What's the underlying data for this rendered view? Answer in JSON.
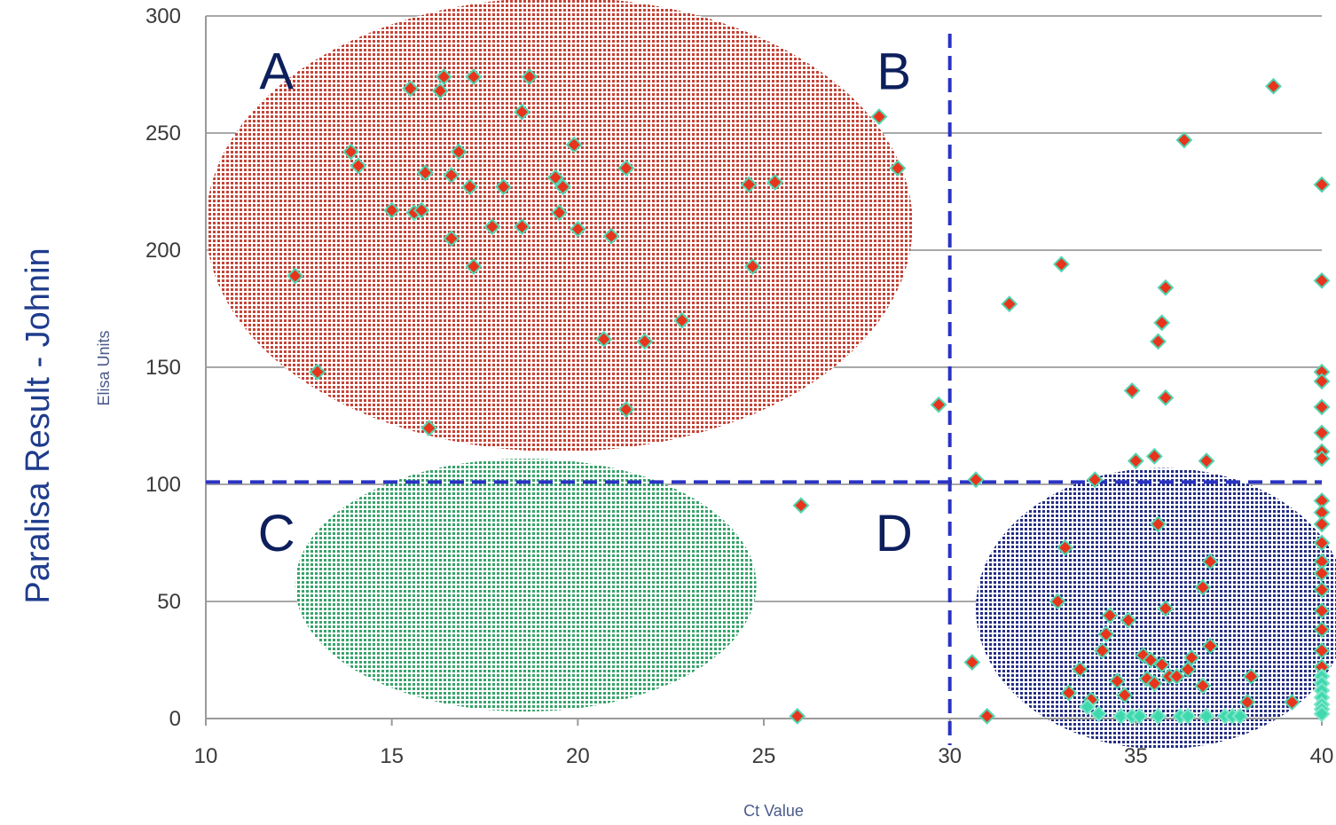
{
  "chart_data": {
    "type": "scatter",
    "title": "",
    "ylabel": "Paralisa Result - Johnin",
    "ylabel_sub": "Elisa Units",
    "xlabel": "Ct Value",
    "xlim": [
      10,
      40
    ],
    "ylim": [
      0,
      300
    ],
    "xticks": [
      "10",
      "15",
      "20",
      "25",
      "30",
      "35",
      "40"
    ],
    "yticks": [
      "0",
      "50",
      "100",
      "150",
      "200",
      "250",
      "300"
    ],
    "grid": "horizontal",
    "cutoffs": {
      "x": 30,
      "y": 101
    },
    "quadrant_labels": [
      "A",
      "B",
      "C",
      "D"
    ],
    "regions": [
      {
        "label": "A",
        "color": "#c0392b",
        "cx": 19.5,
        "cy": 211,
        "rx": 9.5,
        "ry": 97
      },
      {
        "label": "C",
        "color": "#2e9e63",
        "cx": 18.6,
        "cy": 57,
        "rx": 6.2,
        "ry": 54
      },
      {
        "label": "D",
        "color": "#1a237e",
        "cx": 35.7,
        "cy": 47,
        "rx": 5.0,
        "ry": 60
      }
    ],
    "colors": {
      "point": "#e8341c",
      "point_edge": "#4fd6b0",
      "negative_point": "#3fd9ae",
      "cutoff_line": "#2a33c4",
      "grid": "#a8a8a8",
      "axis": "#9a9a9a"
    },
    "series": [
      {
        "marker": "red",
        "points": [
          [
            12.4,
            189
          ],
          [
            13.0,
            148
          ],
          [
            13.9,
            242
          ],
          [
            14.1,
            236
          ],
          [
            15.0,
            217
          ],
          [
            15.5,
            269
          ],
          [
            15.6,
            216
          ],
          [
            15.8,
            217
          ],
          [
            15.9,
            233
          ],
          [
            16.0,
            124
          ],
          [
            16.3,
            268
          ],
          [
            16.4,
            274
          ],
          [
            16.6,
            232
          ],
          [
            16.6,
            205
          ],
          [
            16.8,
            242
          ],
          [
            17.1,
            227
          ],
          [
            17.2,
            193
          ],
          [
            17.2,
            274
          ],
          [
            17.7,
            210
          ],
          [
            18.0,
            227
          ],
          [
            18.5,
            210
          ],
          [
            18.5,
            259
          ],
          [
            18.7,
            274
          ],
          [
            19.4,
            231
          ],
          [
            19.5,
            216
          ],
          [
            19.6,
            227
          ],
          [
            19.9,
            245
          ],
          [
            20.0,
            209
          ],
          [
            20.7,
            162
          ],
          [
            20.9,
            206
          ],
          [
            21.3,
            235
          ],
          [
            21.3,
            132
          ],
          [
            21.8,
            161
          ],
          [
            22.8,
            170
          ],
          [
            24.6,
            228
          ],
          [
            24.7,
            193
          ],
          [
            25.3,
            229
          ],
          [
            25.9,
            1
          ],
          [
            26.0,
            91
          ],
          [
            28.1,
            257
          ],
          [
            28.6,
            235
          ],
          [
            29.7,
            134
          ],
          [
            30.7,
            102
          ],
          [
            31.0,
            1
          ],
          [
            30.6,
            24
          ],
          [
            31.6,
            177
          ],
          [
            33.0,
            194
          ],
          [
            33.1,
            73
          ],
          [
            32.9,
            50
          ],
          [
            33.2,
            11
          ],
          [
            33.5,
            21
          ],
          [
            33.8,
            8
          ],
          [
            33.9,
            102
          ],
          [
            34.1,
            29
          ],
          [
            34.2,
            36
          ],
          [
            34.3,
            44
          ],
          [
            34.5,
            16
          ],
          [
            34.7,
            10
          ],
          [
            34.8,
            42
          ],
          [
            34.9,
            140
          ],
          [
            35.0,
            110
          ],
          [
            35.2,
            27
          ],
          [
            35.3,
            17
          ],
          [
            35.5,
            112
          ],
          [
            35.6,
            83
          ],
          [
            35.6,
            161
          ],
          [
            35.7,
            169
          ],
          [
            35.8,
            137
          ],
          [
            35.8,
            47
          ],
          [
            35.8,
            184
          ],
          [
            35.4,
            25
          ],
          [
            35.5,
            15
          ],
          [
            35.6,
            1
          ],
          [
            35.7,
            23
          ],
          [
            35.9,
            18
          ],
          [
            36.1,
            18
          ],
          [
            36.3,
            247
          ],
          [
            36.4,
            21
          ],
          [
            36.5,
            26
          ],
          [
            36.8,
            56
          ],
          [
            36.8,
            14
          ],
          [
            36.9,
            110
          ],
          [
            37.0,
            31
          ],
          [
            37.0,
            67
          ],
          [
            38.0,
            7
          ],
          [
            38.1,
            18
          ],
          [
            38.7,
            270
          ],
          [
            39.2,
            7
          ],
          [
            40,
            228
          ],
          [
            40,
            187
          ],
          [
            40,
            148
          ],
          [
            40,
            144
          ],
          [
            40,
            133
          ],
          [
            40,
            122
          ],
          [
            40,
            114
          ],
          [
            40,
            111
          ],
          [
            40,
            93
          ],
          [
            40,
            88
          ],
          [
            40,
            83
          ],
          [
            40,
            75
          ],
          [
            40,
            67
          ],
          [
            40,
            62
          ],
          [
            40,
            55
          ],
          [
            40,
            46
          ],
          [
            40,
            38
          ],
          [
            40,
            29
          ],
          [
            40,
            22
          ]
        ]
      },
      {
        "marker": "teal",
        "points": [
          [
            33.7,
            5
          ],
          [
            34.0,
            2
          ],
          [
            34.6,
            1
          ],
          [
            34.9,
            1
          ],
          [
            35.1,
            1
          ],
          [
            35.6,
            1
          ],
          [
            36.2,
            1
          ],
          [
            36.4,
            1
          ],
          [
            36.9,
            1
          ],
          [
            37.4,
            1
          ],
          [
            37.6,
            1
          ],
          [
            37.8,
            1
          ],
          [
            40,
            18
          ],
          [
            40,
            15
          ],
          [
            40,
            12
          ],
          [
            40,
            9
          ],
          [
            40,
            6
          ],
          [
            40,
            4
          ],
          [
            40,
            2
          ]
        ]
      }
    ]
  }
}
